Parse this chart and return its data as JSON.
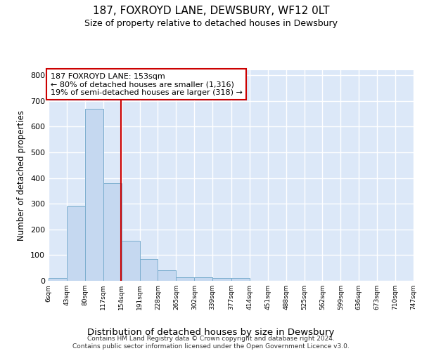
{
  "title": "187, FOXROYD LANE, DEWSBURY, WF12 0LT",
  "subtitle": "Size of property relative to detached houses in Dewsbury",
  "xlabel": "Distribution of detached houses by size in Dewsbury",
  "ylabel": "Number of detached properties",
  "bar_color": "#c5d8f0",
  "bar_edge_color": "#7aadce",
  "background_color": "#dce8f8",
  "grid_color": "#ffffff",
  "bin_edges": [
    6,
    43,
    80,
    117,
    154,
    191,
    228,
    265,
    302,
    339,
    377,
    414,
    451,
    488,
    525,
    562,
    599,
    636,
    673,
    710,
    747
  ],
  "bar_heights": [
    10,
    290,
    670,
    380,
    155,
    85,
    42,
    15,
    15,
    10,
    10,
    0,
    0,
    0,
    0,
    0,
    0,
    0,
    0,
    0
  ],
  "tick_labels": [
    "6sqm",
    "43sqm",
    "80sqm",
    "117sqm",
    "154sqm",
    "191sqm",
    "228sqm",
    "265sqm",
    "302sqm",
    "339sqm",
    "377sqm",
    "414sqm",
    "451sqm",
    "488sqm",
    "525sqm",
    "562sqm",
    "599sqm",
    "636sqm",
    "673sqm",
    "710sqm",
    "747sqm"
  ],
  "vline_x": 153,
  "vline_color": "#cc0000",
  "annotation_line1": "187 FOXROYD LANE: 153sqm",
  "annotation_line2": "← 80% of detached houses are smaller (1,316)",
  "annotation_line3": "19% of semi-detached houses are larger (318) →",
  "annotation_box_color": "#ffffff",
  "annotation_box_edge": "#cc0000",
  "footer_text": "Contains HM Land Registry data © Crown copyright and database right 2024.\nContains public sector information licensed under the Open Government Licence v3.0.",
  "ylim": [
    0,
    820
  ],
  "yticks": [
    0,
    100,
    200,
    300,
    400,
    500,
    600,
    700,
    800
  ]
}
